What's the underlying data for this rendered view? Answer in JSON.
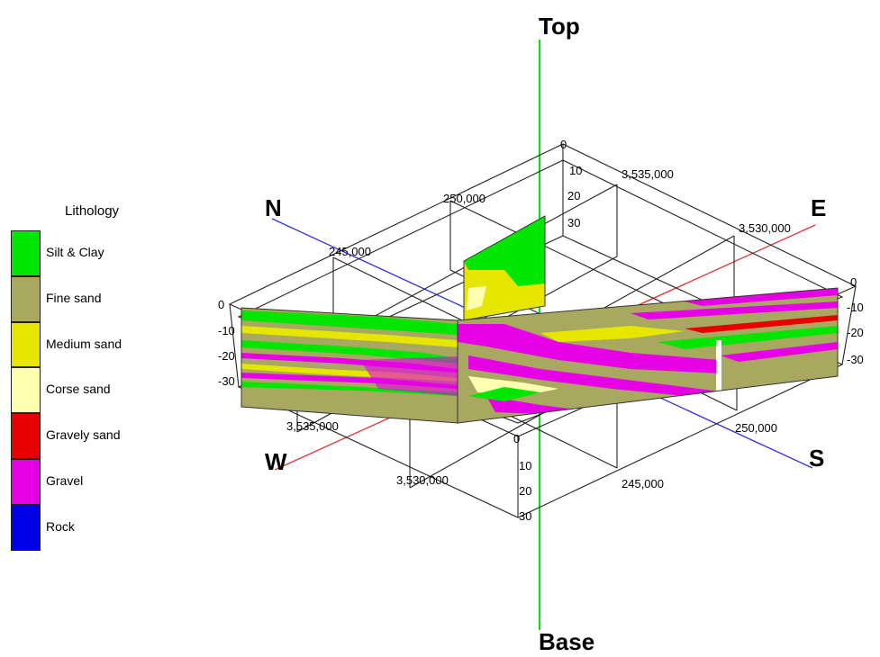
{
  "legend": {
    "title": "Lithology",
    "items": [
      {
        "label": "Silt & Clay",
        "color": "#00e600"
      },
      {
        "label": "Fine sand",
        "color": "#a8a860"
      },
      {
        "label": "Medium sand",
        "color": "#e6e600"
      },
      {
        "label": "Corse sand",
        "color": "#ffffb0"
      },
      {
        "label": "Gravely sand",
        "color": "#e60000"
      },
      {
        "label": "Gravel",
        "color": "#e600e6"
      },
      {
        "label": "Rock",
        "color": "#0000e6"
      }
    ]
  },
  "directions": {
    "top": "Top",
    "base": "Base",
    "north": "N",
    "east": "E",
    "south": "S",
    "west": "W"
  },
  "axes": {
    "easting_back": "250,000",
    "easting_back_2": "245,000",
    "easting_front": "250,000",
    "easting_front_2": "245,000",
    "northing_right": "3,535,000",
    "northing_right_2": "3,530,000",
    "northing_left": "3,535,000",
    "northing_left_2": "3,530,000",
    "depth_left": [
      "0",
      "-10",
      "-20",
      "-30"
    ],
    "depth_right": [
      "0",
      "-10",
      "-20",
      "-30"
    ],
    "depth_top": [
      "0",
      "10",
      "20",
      "30"
    ],
    "depth_bottom": [
      "0",
      "10",
      "20",
      "30"
    ]
  }
}
